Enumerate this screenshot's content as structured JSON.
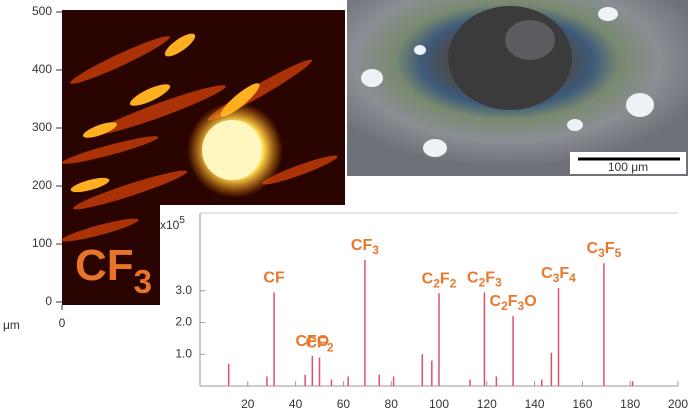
{
  "chart_data": [
    {
      "type": "heatmap",
      "label": [
        "CF",
        "3"
      ],
      "xlabel": "μm",
      "xlim": [
        0,
        500
      ],
      "xticks": [
        0
      ],
      "ylim": [
        0,
        500
      ],
      "yticks": [
        0,
        100,
        200,
        300,
        400,
        500
      ]
    },
    {
      "type": "photo",
      "scale_label": "100 μm"
    },
    {
      "type": "stem",
      "color": "#e0506a",
      "multiplier": [
        "x10",
        "5"
      ],
      "x": [
        12,
        28,
        31,
        44,
        47,
        50,
        55,
        62,
        69,
        75,
        81,
        93,
        97,
        100,
        113,
        119,
        124,
        131,
        143,
        147,
        150,
        169,
        181
      ],
      "values": [
        0.7,
        0.3,
        2.95,
        0.35,
        0.95,
        0.9,
        0.2,
        0.3,
        3.97,
        0.35,
        0.3,
        1.0,
        0.8,
        2.92,
        0.2,
        2.95,
        0.3,
        2.2,
        0.2,
        1.05,
        3.08,
        3.87,
        0.15
      ],
      "xlim": [
        0,
        200
      ],
      "xticks": [
        20,
        40,
        60,
        80,
        100,
        120,
        140,
        160,
        180,
        200
      ],
      "ylim": [
        0,
        5.45
      ],
      "yticks": [
        {
          "value": 1,
          "label": "1.0"
        },
        {
          "value": 2,
          "label": "2.0"
        },
        {
          "value": 3,
          "label": "3.0"
        }
      ],
      "annotations": [
        {
          "text": [
            "CF"
          ],
          "x": 31
        },
        {
          "text": [
            "CFO"
          ],
          "x": 47
        },
        {
          "text": [
            "CF",
            "2"
          ],
          "x": 50
        },
        {
          "text": [
            "CF",
            "3"
          ],
          "x": 69
        },
        {
          "text": [
            "C",
            "2",
            "F",
            "2"
          ],
          "x": 100
        },
        {
          "text": [
            "C",
            "2",
            "F",
            "3"
          ],
          "x": 119
        },
        {
          "text": [
            "C",
            "2",
            "F",
            "3",
            "O"
          ],
          "x": 131
        },
        {
          "text": [
            "C",
            "3",
            "F",
            "4"
          ],
          "x": 150
        },
        {
          "text": [
            "C",
            "3",
            "F",
            "5"
          ],
          "x": 169
        }
      ]
    }
  ]
}
